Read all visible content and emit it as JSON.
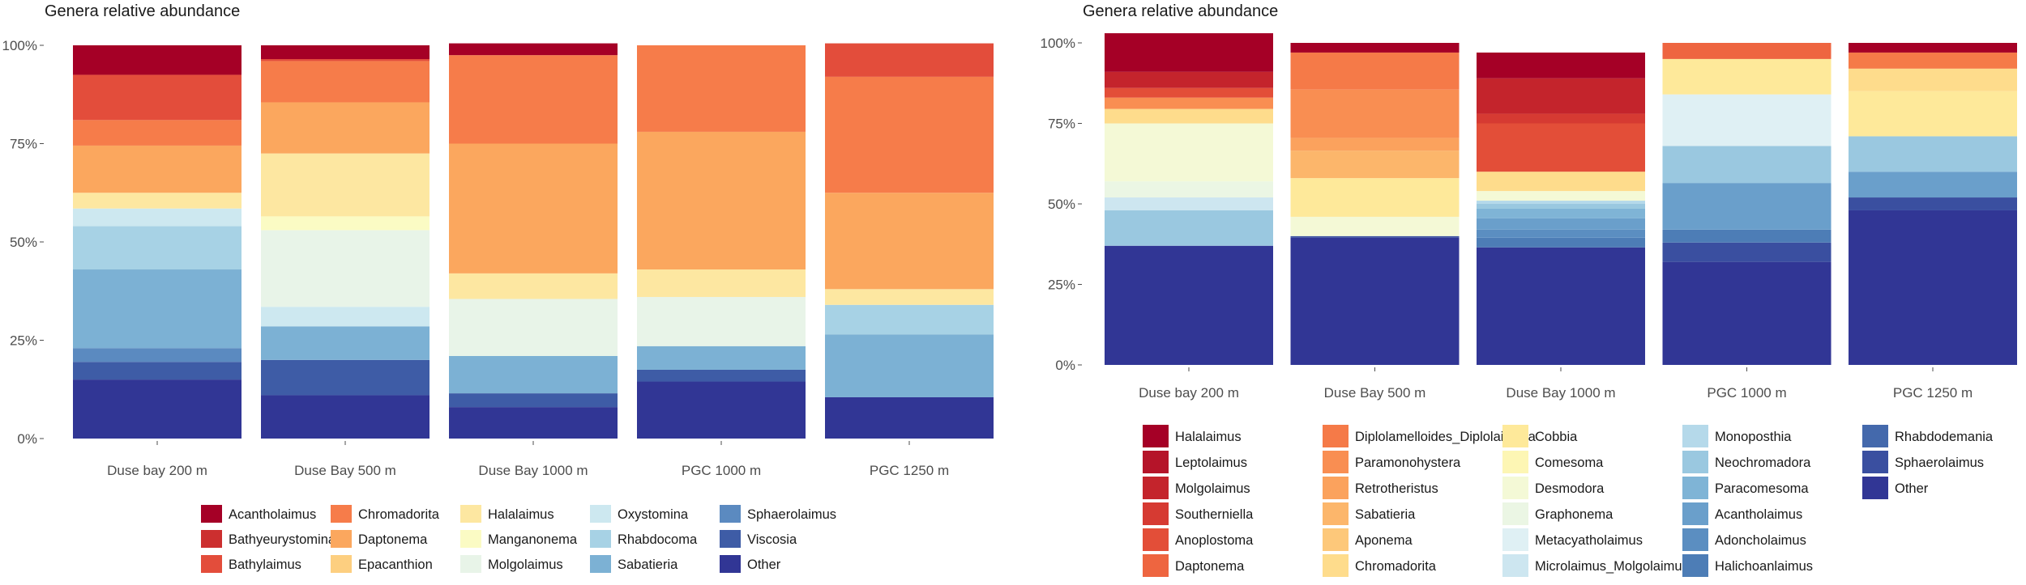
{
  "chart_data": [
    {
      "type": "bar",
      "stacked": true,
      "title": "Genera relative abundance",
      "xlabel": "",
      "ylabel": "",
      "ylim": [
        0,
        1
      ],
      "yticks": [
        "0%",
        "25%",
        "50%",
        "75%",
        "100%"
      ],
      "categories": [
        "Duse bay 200 m",
        "Duse Bay 500 m",
        "Duse Bay 1000 m",
        "PGC 1000 m",
        "PGC 1250 m"
      ],
      "series": [
        {
          "name": "Other",
          "color": "#313695",
          "values": [
            0.15,
            0.11,
            0.08,
            0.145,
            0.105
          ]
        },
        {
          "name": "Viscosia",
          "color": "#3e5ca6",
          "values": [
            0.045,
            0.09,
            0.035,
            0.03,
            0.0
          ]
        },
        {
          "name": "Sphaerolaimus",
          "color": "#5b8ac0",
          "values": [
            0.035,
            0.0,
            0.0,
            0.0,
            0.0
          ]
        },
        {
          "name": "Sabatieria",
          "color": "#7cb1d4",
          "values": [
            0.2,
            0.085,
            0.095,
            0.06,
            0.16
          ]
        },
        {
          "name": "Rhabdocoma",
          "color": "#a7d2e5",
          "values": [
            0.11,
            0.0,
            0.0,
            0.0,
            0.075
          ]
        },
        {
          "name": "Oxystomina",
          "color": "#cde8f0",
          "values": [
            0.045,
            0.05,
            0.0,
            0.0,
            0.0
          ]
        },
        {
          "name": "Molgolaimus",
          "color": "#e8f4e8",
          "values": [
            0.0,
            0.195,
            0.145,
            0.125,
            0.0
          ]
        },
        {
          "name": "Manganonema",
          "color": "#fbfbc4",
          "values": [
            0.0,
            0.035,
            0.0,
            0.0,
            0.0
          ]
        },
        {
          "name": "Halalaimus",
          "color": "#fde7a1",
          "values": [
            0.04,
            0.16,
            0.065,
            0.07,
            0.04
          ]
        },
        {
          "name": "Epacanthion",
          "color": "#fdcf80",
          "values": [
            0.0,
            0.0,
            0.0,
            0.0,
            0.0
          ]
        },
        {
          "name": "Daptonema",
          "color": "#fba75e",
          "values": [
            0.12,
            0.13,
            0.33,
            0.35,
            0.245
          ]
        },
        {
          "name": "Chromadorita",
          "color": "#f67c4a",
          "values": [
            0.065,
            0.105,
            0.225,
            0.22,
            0.295
          ]
        },
        {
          "name": "Bathylaimus",
          "color": "#e34d3b",
          "values": [
            0.115,
            0.005,
            0.0,
            0.0,
            0.085
          ]
        },
        {
          "name": "Bathyeurystomina",
          "color": "#cc2f2f",
          "values": [
            0.0,
            0.0,
            0.0,
            0.0,
            0.0
          ]
        },
        {
          "name": "Acantholaimus",
          "color": "#a50026",
          "values": [
            0.075,
            0.035,
            0.03,
            0.0,
            0.0
          ]
        }
      ],
      "legend": [
        "Acantholaimus",
        "Bathyeurystomina",
        "Bathylaimus",
        "Chromadorita",
        "Daptonema",
        "Epacanthion",
        "Halalaimus",
        "Manganonema",
        "Molgolaimus",
        "Oxystomina",
        "Rhabdocoma",
        "Sabatieria",
        "Sphaerolaimus",
        "Viscosia",
        "Other"
      ],
      "legend_position": "bottom"
    },
    {
      "type": "bar",
      "stacked": true,
      "title": "Genera relative abundance",
      "xlabel": "",
      "ylabel": "",
      "ylim": [
        0,
        1
      ],
      "yticks": [
        "0%",
        "25%",
        "50%",
        "75%",
        "100%"
      ],
      "categories": [
        "Duse bay 200 m",
        "Duse Bay 500 m",
        "Duse Bay 1000 m",
        "PGC 1000 m",
        "PGC 1250 m"
      ],
      "series": [
        {
          "name": "Other",
          "color": "#313695",
          "values": [
            0.37,
            0.395,
            0.365,
            0.32,
            0.48
          ]
        },
        {
          "name": "Sphaerolaimus",
          "color": "#3a4fa0",
          "values": [
            0.0,
            0.005,
            0.0,
            0.06,
            0.04
          ]
        },
        {
          "name": "Rhabdodemania",
          "color": "#4469ac",
          "values": [
            0.0,
            0.0,
            0.0,
            0.0,
            0.0
          ]
        },
        {
          "name": "Halichoanlaimus",
          "color": "#4d7db6",
          "values": [
            0.0,
            0.0,
            0.03,
            0.04,
            0.0
          ]
        },
        {
          "name": "Adoncholaimus",
          "color": "#5b8ec1",
          "values": [
            0.0,
            0.0,
            0.025,
            0.0,
            0.0
          ]
        },
        {
          "name": "Acantholaimus",
          "color": "#6a9fcb",
          "values": [
            0.0,
            0.0,
            0.035,
            0.145,
            0.08
          ]
        },
        {
          "name": "Paracomesoma",
          "color": "#7fb4d6",
          "values": [
            0.0,
            0.0,
            0.03,
            0.0,
            0.0
          ]
        },
        {
          "name": "Neochromadora",
          "color": "#9ac8e0",
          "values": [
            0.11,
            0.0,
            0.015,
            0.115,
            0.11
          ]
        },
        {
          "name": "Monoposthia",
          "color": "#b5d9ea",
          "values": [
            0.0,
            0.0,
            0.01,
            0.0,
            0.0
          ]
        },
        {
          "name": "Microlaimus_Molgolaimus",
          "color": "#cde6f0",
          "values": [
            0.04,
            0.0,
            0.0,
            0.0,
            0.0
          ]
        },
        {
          "name": "Metacyatholaimus",
          "color": "#dff0f4",
          "values": [
            0.0,
            0.0,
            0.0,
            0.16,
            0.0
          ]
        },
        {
          "name": "Graphonema",
          "color": "#ebf6e4",
          "values": [
            0.05,
            0.0,
            0.0,
            0.0,
            0.0
          ]
        },
        {
          "name": "Desmodora",
          "color": "#f4f9d6",
          "values": [
            0.18,
            0.06,
            0.03,
            0.0,
            0.0
          ]
        },
        {
          "name": "Comesoma",
          "color": "#fdf6b4",
          "values": [
            0.0,
            0.0,
            0.0,
            0.0,
            0.0
          ]
        },
        {
          "name": "Cobbia",
          "color": "#fee99a",
          "values": [
            0.0,
            0.12,
            0.0,
            0.11,
            0.14
          ]
        },
        {
          "name": "Chromadorita",
          "color": "#fedc8c",
          "values": [
            0.045,
            0.0,
            0.06,
            0.0,
            0.07
          ]
        },
        {
          "name": "Aponema",
          "color": "#fdc87a",
          "values": [
            0.0,
            0.0,
            0.0,
            0.0,
            0.0
          ]
        },
        {
          "name": "Sabatieria",
          "color": "#fcb66b",
          "values": [
            0.0,
            0.085,
            0.0,
            0.0,
            0.0
          ]
        },
        {
          "name": "Retrotheristus",
          "color": "#fba25d",
          "values": [
            0.0,
            0.04,
            0.0,
            0.0,
            0.0
          ]
        },
        {
          "name": "Paramonohystera",
          "color": "#f98e52",
          "values": [
            0.035,
            0.15,
            0.0,
            0.0,
            0.0
          ]
        },
        {
          "name": "Diplolamelloides_Diplolaimella",
          "color": "#f57a48",
          "values": [
            0.0,
            0.115,
            0.0,
            0.0,
            0.05
          ]
        },
        {
          "name": "Daptonema",
          "color": "#ee6540",
          "values": [
            0.0,
            0.0,
            0.0,
            0.05,
            0.0
          ]
        },
        {
          "name": "Anoplostoma",
          "color": "#e34e38",
          "values": [
            0.03,
            0.0,
            0.15,
            0.0,
            0.0
          ]
        },
        {
          "name": "Southerniella",
          "color": "#d63a32",
          "values": [
            0.0,
            0.0,
            0.03,
            0.0,
            0.0
          ]
        },
        {
          "name": "Molgolaimus",
          "color": "#c4242c",
          "values": [
            0.05,
            0.0,
            0.11,
            0.0,
            0.0
          ]
        },
        {
          "name": "Leptolaimus",
          "color": "#b51429",
          "values": [
            0.0,
            0.0,
            0.0,
            0.0,
            0.0
          ]
        },
        {
          "name": "Halalaimus",
          "color": "#a50026",
          "values": [
            0.12,
            0.03,
            0.08,
            0.0,
            0.03
          ]
        }
      ],
      "legend": [
        "Halalaimus",
        "Leptolaimus",
        "Molgolaimus",
        "Southerniella",
        "Anoplostoma",
        "Daptonema",
        "Diplolamelloides_Diplolaimella",
        "Paramonohystera",
        "Retrotheristus",
        "Sabatieria",
        "Aponema",
        "Chromadorita",
        "Cobbia",
        "Comesoma",
        "Desmodora",
        "Graphonema",
        "Metacyatholaimus",
        "Microlaimus_Molgolaimus",
        "Monoposthia",
        "Neochromadora",
        "Paracomesoma",
        "Acantholaimus",
        "Adoncholaimus",
        "Halichoanlaimus",
        "Rhabdodemania",
        "Sphaerolaimus",
        "Other"
      ],
      "legend_position": "bottom"
    }
  ]
}
